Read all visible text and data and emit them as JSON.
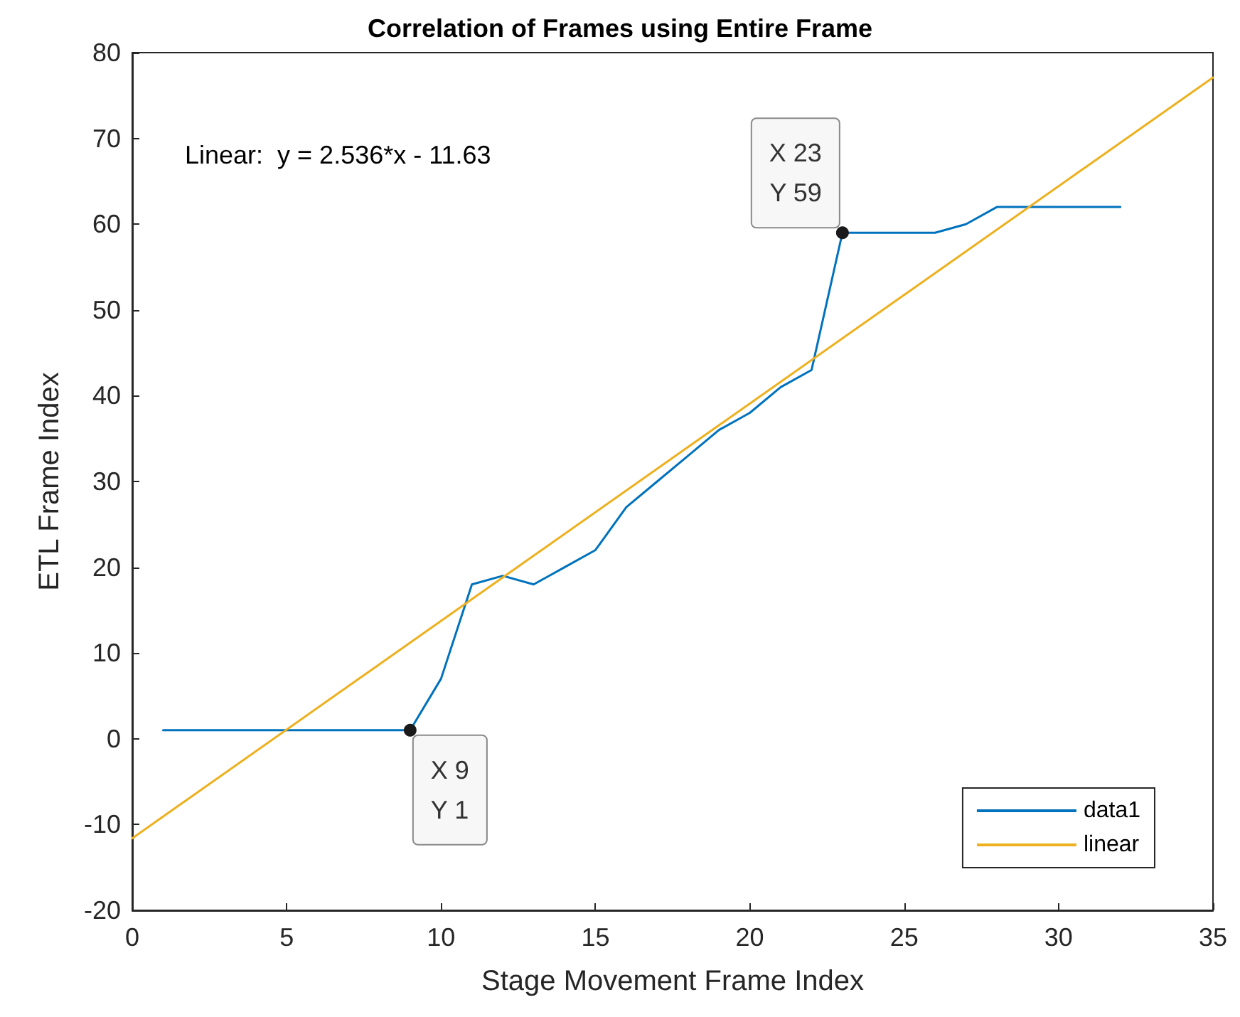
{
  "chart_data": {
    "type": "line",
    "title": "Correlation of Frames using Entire Frame",
    "xlabel": "Stage Movement Frame Index",
    "ylabel": "ETL Frame Index",
    "xlim": [
      0,
      35
    ],
    "xticks": [
      0,
      5,
      10,
      15,
      20,
      25,
      30,
      35
    ],
    "ylim": [
      -20,
      80
    ],
    "yticks": [
      -20,
      -10,
      0,
      10,
      20,
      30,
      40,
      50,
      60,
      70,
      80
    ],
    "grid": false,
    "legend": "bottom right",
    "marker": "none",
    "line_style": "solid",
    "series": [
      {
        "name": "data1",
        "color": "#0072bd",
        "x": [
          1,
          2,
          3,
          4,
          5,
          6,
          7,
          8,
          9,
          10,
          11,
          12,
          13,
          14,
          15,
          16,
          17,
          18,
          19,
          20,
          21,
          22,
          23,
          24,
          25,
          26,
          27,
          28,
          29,
          30,
          31,
          32
        ],
        "values": [
          1,
          1,
          1,
          1,
          1,
          1,
          1,
          1,
          1,
          7,
          18,
          19,
          18,
          20,
          22,
          27,
          30,
          33,
          36,
          38,
          41,
          43,
          59,
          59,
          59,
          59,
          60,
          62,
          62,
          62,
          62,
          62
        ]
      },
      {
        "name": "linear",
        "color": "#edb120",
        "x": [
          0,
          35
        ],
        "values": [
          -11.6,
          77.1
        ]
      }
    ],
    "annotations": [
      "Linear:  y = 2.536*x - 11.63",
      {
        "text": "X 9\nY 1",
        "x": 9,
        "y": 1
      },
      {
        "text": "X 23\nY 59",
        "x": 23,
        "y": 59
      }
    ]
  }
}
